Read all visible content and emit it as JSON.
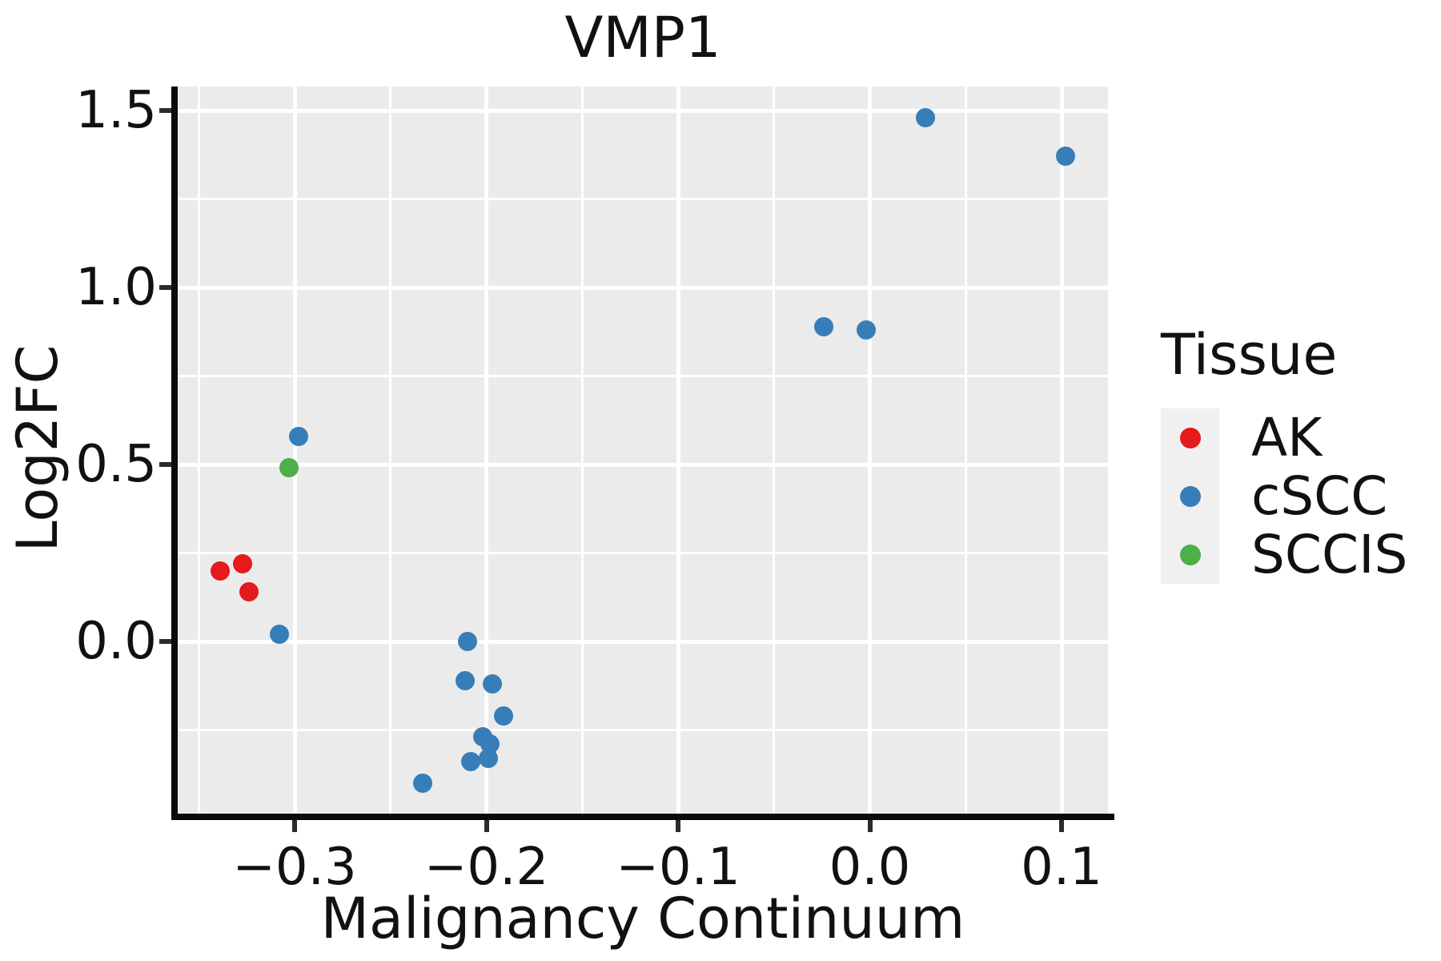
{
  "figure": {
    "title": "VMP1"
  },
  "axes": {
    "x": {
      "label": "Malignancy Continuum",
      "ticks": [
        {
          "value": -0.3,
          "label": "−0.3"
        },
        {
          "value": -0.2,
          "label": "−0.2"
        },
        {
          "value": -0.1,
          "label": "−0.1"
        },
        {
          "value": 0.0,
          "label": "0.0"
        },
        {
          "value": 0.1,
          "label": "0.1"
        }
      ],
      "minor_ticks": [
        -0.35,
        -0.25,
        -0.15,
        -0.05,
        0.05
      ]
    },
    "y": {
      "label": "Log2FC",
      "ticks": [
        {
          "value": 1.5,
          "label": "1.5"
        },
        {
          "value": 1.0,
          "label": "1.0"
        },
        {
          "value": 0.5,
          "label": "0.5"
        },
        {
          "value": 0.0,
          "label": "0.0"
        }
      ],
      "minor_ticks": [
        1.25,
        0.75,
        0.25,
        -0.25
      ]
    }
  },
  "legend": {
    "title": "Tissue",
    "entries": [
      {
        "label": "AK",
        "color": "#E41A1C"
      },
      {
        "label": "cSCC",
        "color": "#377EB8"
      },
      {
        "label": "SCCIS",
        "color": "#4DAF4A"
      }
    ]
  },
  "chart_data": {
    "type": "scatter",
    "title": "VMP1",
    "xlabel": "Malignancy Continuum",
    "ylabel": "Log2FC",
    "xlim": [
      -0.361,
      0.124
    ],
    "ylim": [
      -0.486,
      1.568
    ],
    "grid": true,
    "legend_position": "right",
    "panel_background": "#EBEBEB",
    "gridline_color": "#FFFFFF",
    "series": [
      {
        "name": "AK",
        "color": "#E41A1C",
        "points": [
          [
            -0.339,
            0.2
          ],
          [
            -0.327,
            0.22
          ],
          [
            -0.324,
            0.14
          ]
        ]
      },
      {
        "name": "cSCC",
        "color": "#377EB8",
        "points": [
          [
            -0.298,
            0.58
          ],
          [
            -0.308,
            0.02
          ],
          [
            -0.21,
            0.0
          ],
          [
            -0.211,
            -0.11
          ],
          [
            -0.197,
            -0.12
          ],
          [
            -0.191,
            -0.21
          ],
          [
            -0.202,
            -0.27
          ],
          [
            -0.198,
            -0.29
          ],
          [
            -0.199,
            -0.33
          ],
          [
            -0.208,
            -0.34
          ],
          [
            -0.233,
            -0.4
          ],
          [
            -0.024,
            0.89
          ],
          [
            -0.002,
            0.88
          ],
          [
            0.029,
            1.48
          ],
          [
            0.102,
            1.37
          ]
        ]
      },
      {
        "name": "SCCIS",
        "color": "#4DAF4A",
        "points": [
          [
            -0.303,
            0.49
          ]
        ]
      }
    ]
  }
}
